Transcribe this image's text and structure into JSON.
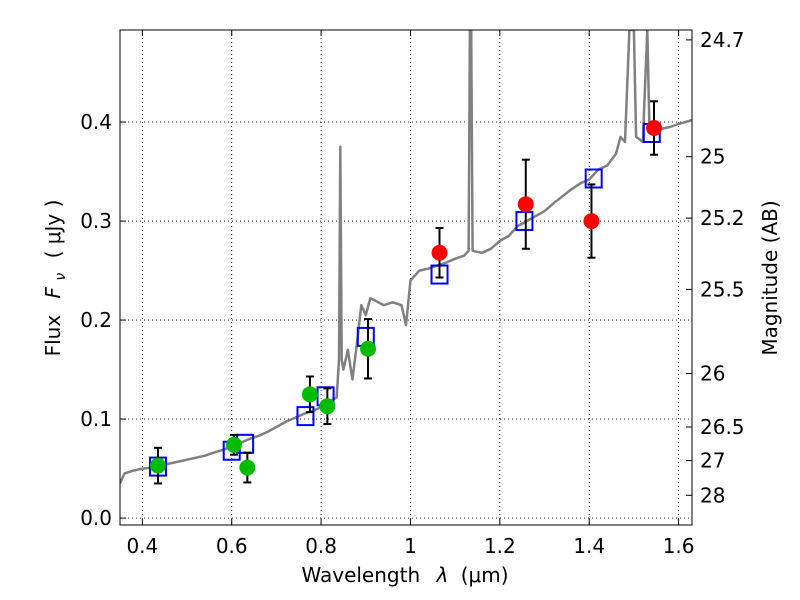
{
  "chart_data": {
    "type": "scatter",
    "xlabel_text": "Wavelength",
    "xlabel_symbol": "λ",
    "xlabel_unit": "(μm)",
    "ylabel_text": "Flux",
    "ylabel_symbol": "F",
    "ylabel_sub": "ν",
    "ylabel_unit": "( μJy )",
    "y2label": "Magnitude (AB)",
    "xlim": [
      0.35,
      1.63
    ],
    "ylim": [
      -0.007,
      0.493
    ],
    "grid": true,
    "x_ticks": [
      0.4,
      0.6,
      0.8,
      1.0,
      1.2,
      1.4,
      1.6
    ],
    "x_tick_labels": [
      "0.4",
      "0.6",
      "0.8",
      "1",
      "1.2",
      "1.4",
      "1.6"
    ],
    "y_ticks": [
      0.0,
      0.1,
      0.2,
      0.3,
      0.4
    ],
    "y_tick_labels": [
      "0.0",
      "0.1",
      "0.2",
      "0.3",
      "0.4"
    ],
    "y2_ticks": [
      {
        "label": "24.7",
        "flux": 0.483
      },
      {
        "label": "25",
        "flux": 0.365
      },
      {
        "label": "25.2",
        "flux": 0.303
      },
      {
        "label": "25.5",
        "flux": 0.231
      },
      {
        "label": "26",
        "flux": 0.146
      },
      {
        "label": "26.5",
        "flux": 0.092
      },
      {
        "label": "27",
        "flux": 0.058
      },
      {
        "label": "28",
        "flux": 0.023
      }
    ],
    "colors": {
      "model": "#808080",
      "green_points": "#00bb00",
      "red_points": "#ff0000",
      "model_boxes": "#0000ff",
      "errorbar": "#000000",
      "grid": "#000000"
    },
    "series": [
      {
        "kind": "points",
        "color_key": "green_points",
        "points": [
          {
            "x": 0.435,
            "y": 0.053,
            "err": 0.018
          },
          {
            "x": 0.605,
            "y": 0.074,
            "err": 0.01
          },
          {
            "x": 0.635,
            "y": 0.051,
            "err": 0.015
          },
          {
            "x": 0.775,
            "y": 0.125,
            "err": 0.018
          },
          {
            "x": 0.814,
            "y": 0.113,
            "err": 0.018
          },
          {
            "x": 0.905,
            "y": 0.171,
            "err": 0.03
          }
        ]
      },
      {
        "kind": "points",
        "color_key": "red_points",
        "points": [
          {
            "x": 1.065,
            "y": 0.268,
            "err": 0.025
          },
          {
            "x": 1.258,
            "y": 0.317,
            "err": 0.045
          },
          {
            "x": 1.405,
            "y": 0.3,
            "err": 0.037
          },
          {
            "x": 1.545,
            "y": 0.394,
            "err": 0.027
          }
        ]
      },
      {
        "kind": "boxes",
        "color_key": "model_boxes",
        "points": [
          {
            "x": 0.435,
            "y": 0.052
          },
          {
            "x": 0.6,
            "y": 0.068
          },
          {
            "x": 0.63,
            "y": 0.075
          },
          {
            "x": 0.765,
            "y": 0.103
          },
          {
            "x": 0.81,
            "y": 0.123
          },
          {
            "x": 0.9,
            "y": 0.183
          },
          {
            "x": 1.065,
            "y": 0.246
          },
          {
            "x": 1.255,
            "y": 0.3
          },
          {
            "x": 1.41,
            "y": 0.343
          },
          {
            "x": 1.54,
            "y": 0.389
          }
        ]
      },
      {
        "kind": "line",
        "color_key": "model",
        "points": [
          {
            "x": 0.35,
            "y": 0.035
          },
          {
            "x": 0.36,
            "y": 0.045
          },
          {
            "x": 0.38,
            "y": 0.048
          },
          {
            "x": 0.4,
            "y": 0.05
          },
          {
            "x": 0.42,
            "y": 0.051
          },
          {
            "x": 0.44,
            "y": 0.053
          },
          {
            "x": 0.46,
            "y": 0.055
          },
          {
            "x": 0.48,
            "y": 0.057
          },
          {
            "x": 0.5,
            "y": 0.059
          },
          {
            "x": 0.52,
            "y": 0.061
          },
          {
            "x": 0.54,
            "y": 0.063
          },
          {
            "x": 0.56,
            "y": 0.066
          },
          {
            "x": 0.58,
            "y": 0.069
          },
          {
            "x": 0.6,
            "y": 0.072
          },
          {
            "x": 0.62,
            "y": 0.076
          },
          {
            "x": 0.64,
            "y": 0.08
          },
          {
            "x": 0.66,
            "y": 0.083
          },
          {
            "x": 0.68,
            "y": 0.087
          },
          {
            "x": 0.7,
            "y": 0.092
          },
          {
            "x": 0.72,
            "y": 0.097
          },
          {
            "x": 0.74,
            "y": 0.101
          },
          {
            "x": 0.76,
            "y": 0.105
          },
          {
            "x": 0.78,
            "y": 0.108
          },
          {
            "x": 0.8,
            "y": 0.112
          },
          {
            "x": 0.82,
            "y": 0.118
          },
          {
            "x": 0.835,
            "y": 0.122
          },
          {
            "x": 0.84,
            "y": 0.16
          },
          {
            "x": 0.843,
            "y": 0.375
          },
          {
            "x": 0.846,
            "y": 0.16
          },
          {
            "x": 0.85,
            "y": 0.15
          },
          {
            "x": 0.86,
            "y": 0.17
          },
          {
            "x": 0.87,
            "y": 0.14
          },
          {
            "x": 0.88,
            "y": 0.175
          },
          {
            "x": 0.89,
            "y": 0.215
          },
          {
            "x": 0.9,
            "y": 0.205
          },
          {
            "x": 0.91,
            "y": 0.222
          },
          {
            "x": 0.92,
            "y": 0.22
          },
          {
            "x": 0.94,
            "y": 0.215
          },
          {
            "x": 0.96,
            "y": 0.218
          },
          {
            "x": 0.98,
            "y": 0.215
          },
          {
            "x": 0.99,
            "y": 0.195
          },
          {
            "x": 1.0,
            "y": 0.24
          },
          {
            "x": 1.02,
            "y": 0.25
          },
          {
            "x": 1.04,
            "y": 0.252
          },
          {
            "x": 1.06,
            "y": 0.255
          },
          {
            "x": 1.08,
            "y": 0.258
          },
          {
            "x": 1.1,
            "y": 0.262
          },
          {
            "x": 1.12,
            "y": 0.265
          },
          {
            "x": 1.13,
            "y": 0.27
          },
          {
            "x": 1.133,
            "y": 0.493
          },
          {
            "x": 1.136,
            "y": 0.493
          },
          {
            "x": 1.139,
            "y": 0.27
          },
          {
            "x": 1.16,
            "y": 0.268
          },
          {
            "x": 1.18,
            "y": 0.272
          },
          {
            "x": 1.2,
            "y": 0.28
          },
          {
            "x": 1.22,
            "y": 0.285
          },
          {
            "x": 1.24,
            "y": 0.295
          },
          {
            "x": 1.26,
            "y": 0.3
          },
          {
            "x": 1.28,
            "y": 0.305
          },
          {
            "x": 1.3,
            "y": 0.31
          },
          {
            "x": 1.32,
            "y": 0.318
          },
          {
            "x": 1.34,
            "y": 0.325
          },
          {
            "x": 1.36,
            "y": 0.332
          },
          {
            "x": 1.38,
            "y": 0.338
          },
          {
            "x": 1.4,
            "y": 0.342
          },
          {
            "x": 1.42,
            "y": 0.352
          },
          {
            "x": 1.44,
            "y": 0.356
          },
          {
            "x": 1.46,
            "y": 0.368
          },
          {
            "x": 1.47,
            "y": 0.385
          },
          {
            "x": 1.48,
            "y": 0.38
          },
          {
            "x": 1.49,
            "y": 0.493
          },
          {
            "x": 1.5,
            "y": 0.493
          },
          {
            "x": 1.505,
            "y": 0.385
          },
          {
            "x": 1.52,
            "y": 0.38
          },
          {
            "x": 1.53,
            "y": 0.493
          },
          {
            "x": 1.535,
            "y": 0.39
          },
          {
            "x": 1.56,
            "y": 0.393
          },
          {
            "x": 1.58,
            "y": 0.395
          },
          {
            "x": 1.6,
            "y": 0.398
          },
          {
            "x": 1.63,
            "y": 0.402
          }
        ]
      }
    ]
  }
}
